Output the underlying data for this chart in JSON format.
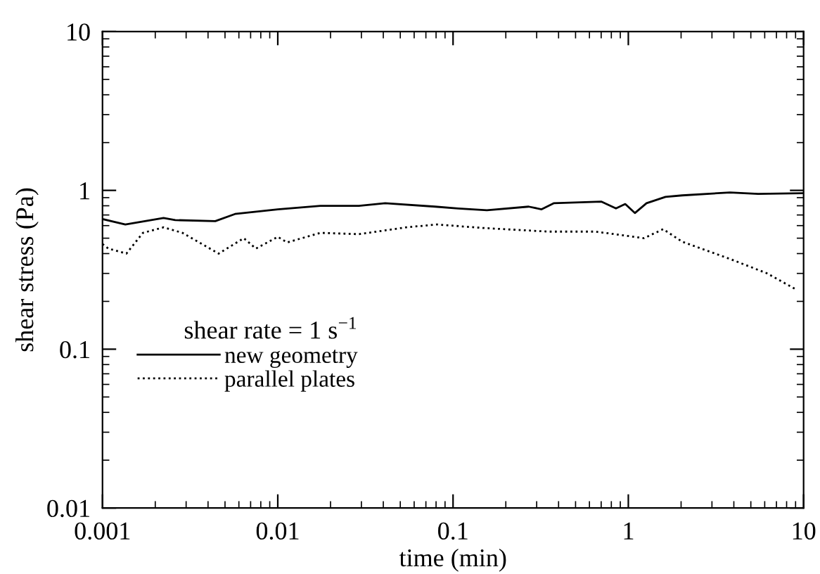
{
  "chart_data": {
    "type": "line",
    "xlabel": "time (min)",
    "ylabel": "shear stress (Pa)",
    "legend_title": "shear rate = 1 s$^{−1}$",
    "log": "xy",
    "xlim": [
      0.001,
      10
    ],
    "ylim": [
      0.01,
      10
    ],
    "xticks": [
      0.001,
      0.01,
      0.1,
      1,
      10
    ],
    "yticks": [
      0.01,
      0.1,
      1,
      10
    ],
    "legend": "bottom left",
    "grid": false,
    "series": [
      {
        "name": "new geometry",
        "color": "#000000",
        "line_style": "solid",
        "x": [
          0.001,
          0.00135,
          0.00223,
          0.0026,
          0.0044,
          0.0057,
          0.01,
          0.0175,
          0.029,
          0.041,
          0.079,
          0.107,
          0.156,
          0.27,
          0.32,
          0.375,
          0.7,
          0.85,
          0.96,
          1.09,
          1.27,
          1.63,
          2.03,
          3.8,
          5.5,
          10
        ],
        "values": [
          0.66,
          0.61,
          0.67,
          0.65,
          0.64,
          0.71,
          0.76,
          0.8,
          0.8,
          0.83,
          0.79,
          0.77,
          0.75,
          0.79,
          0.76,
          0.83,
          0.85,
          0.77,
          0.82,
          0.72,
          0.83,
          0.91,
          0.93,
          0.97,
          0.95,
          0.96
        ]
      },
      {
        "name": "parallel plates",
        "color": "#000000",
        "line_style": "dotted",
        "x": [
          0.001,
          0.00108,
          0.00137,
          0.0017,
          0.00223,
          0.00286,
          0.0046,
          0.0064,
          0.0075,
          0.01,
          0.0113,
          0.0175,
          0.029,
          0.054,
          0.081,
          0.147,
          0.35,
          0.65,
          1.23,
          1.58,
          2.03,
          3.8,
          6.2,
          9.1
        ],
        "values": [
          0.46,
          0.43,
          0.4,
          0.54,
          0.585,
          0.54,
          0.4,
          0.5,
          0.43,
          0.51,
          0.47,
          0.54,
          0.53,
          0.585,
          0.61,
          0.58,
          0.55,
          0.55,
          0.5,
          0.57,
          0.475,
          0.37,
          0.3,
          0.237
        ]
      }
    ]
  }
}
